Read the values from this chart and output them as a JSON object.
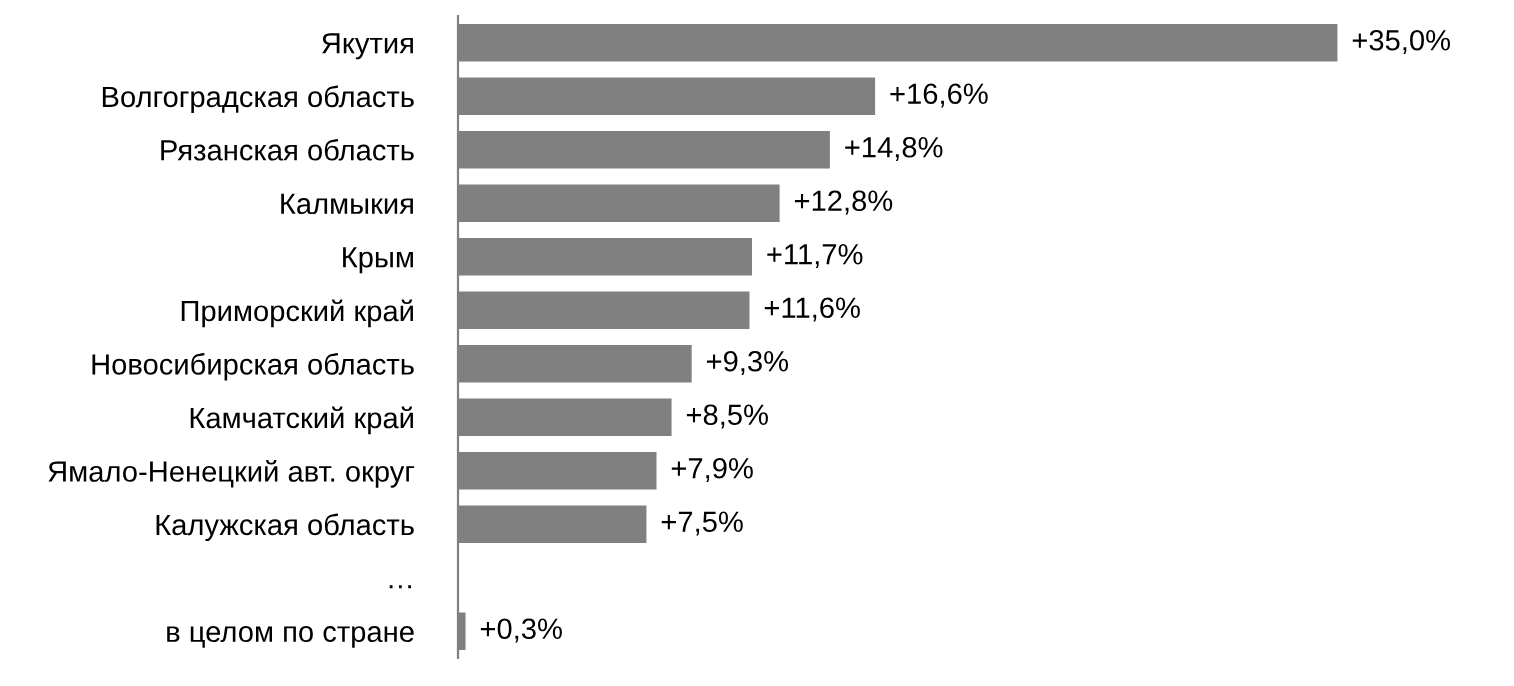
{
  "chart_data": {
    "type": "bar",
    "orientation": "horizontal",
    "categories": [
      "Якутия",
      "Волгоградская область",
      "Рязанская область",
      "Калмыкия",
      "Крым",
      "Приморский край",
      "Новосибирская область",
      "Камчатский край",
      "Ямало-Ненецкий авт. округ",
      "Калужская область",
      "…",
      "в целом по стране"
    ],
    "values": [
      35.0,
      16.6,
      14.8,
      12.8,
      11.7,
      11.6,
      9.3,
      8.5,
      7.9,
      7.5,
      null,
      0.3
    ],
    "value_labels": [
      "+35,0%",
      "+16,6%",
      "+14,8%",
      "+12,8%",
      "+11,7%",
      "+11,6%",
      "+9,3%",
      "+8,5%",
      "+7,9%",
      "+7,5%",
      null,
      "+0,3%"
    ],
    "color": "#808080",
    "tick_labels": "y",
    "grid": false,
    "legend": false
  }
}
